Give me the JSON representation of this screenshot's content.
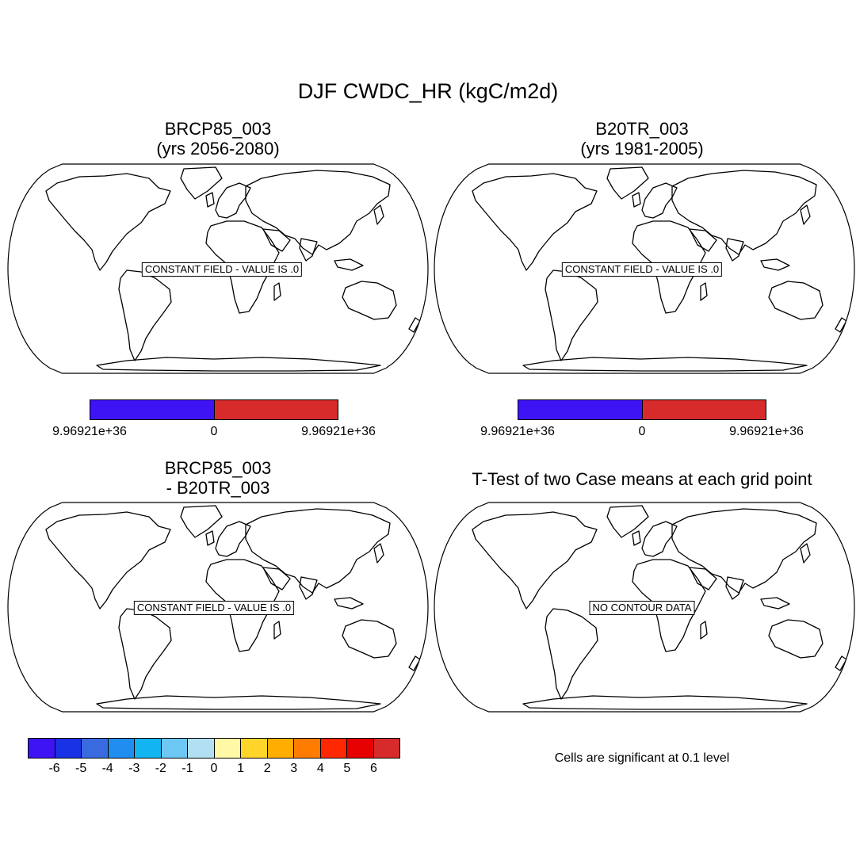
{
  "title": "DJF CWDC_HR (kgC/m2d)",
  "colors": {
    "land_outline": "#000000",
    "two_color_bar": [
      "#3e14f5",
      "#d72a2a"
    ]
  },
  "panels": [
    {
      "id": "case1",
      "title_line1": "BRCP85_003",
      "title_line2": "(yrs 2056-2080)",
      "label": "CONSTANT FIELD - VALUE IS .0"
    },
    {
      "id": "case2",
      "title_line1": "B20TR_003",
      "title_line2": "(yrs 1981-2005)",
      "label": "CONSTANT FIELD - VALUE IS .0"
    },
    {
      "id": "diff",
      "title_line1": "BRCP85_003",
      "title_line2": "- B20TR_003",
      "label": "CONSTANT FIELD - VALUE IS .0"
    },
    {
      "id": "ttest",
      "title_line1": "T-Test of two Case means at each grid point",
      "title_line2": "",
      "label": "NO CONTOUR DATA"
    }
  ],
  "case_colorbar": {
    "labels": [
      "9.96921e+36",
      "0",
      "9.96921e+36"
    ]
  },
  "diff_colorbar": {
    "colors": [
      "#3e14f5",
      "#1a32e6",
      "#3a6ae0",
      "#1f8ef0",
      "#12b4f2",
      "#6cc8f2",
      "#b3dff3",
      "#fff9a6",
      "#ffd52a",
      "#ffad00",
      "#ff7c00",
      "#ff2800",
      "#e60000",
      "#d72a2a"
    ],
    "labels": [
      "-6",
      "-5",
      "-4",
      "-3",
      "-2",
      "-1",
      "0",
      "1",
      "2",
      "3",
      "4",
      "5",
      "6"
    ]
  },
  "ttest_note": "Cells are significant at 0.1 level"
}
